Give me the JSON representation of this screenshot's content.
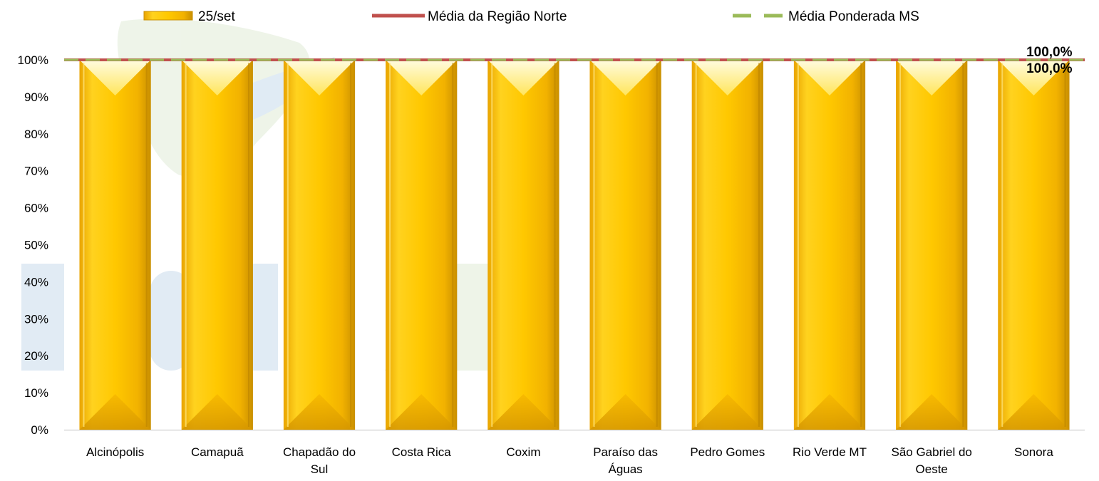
{
  "chart_data": {
    "type": "bar",
    "title": "",
    "xlabel": "",
    "ylabel": "",
    "categories": [
      [
        "Alcinópolis"
      ],
      [
        "Camapuã"
      ],
      [
        "Chapadão do",
        "Sul"
      ],
      [
        "Costa Rica"
      ],
      [
        "Coxim"
      ],
      [
        "Paraíso das",
        "Águas"
      ],
      [
        "Pedro Gomes"
      ],
      [
        "Rio Verde MT"
      ],
      [
        "São Gabriel do",
        "Oeste"
      ],
      [
        "Sonora"
      ]
    ],
    "series": [
      {
        "name": "25/set",
        "kind": "bar",
        "color": "#F5B800",
        "values": [
          100,
          100,
          100,
          100,
          100,
          100,
          100,
          100,
          100,
          100
        ]
      },
      {
        "name": "Média da Região Norte",
        "kind": "line",
        "color": "#C0504D",
        "values": [
          100,
          100,
          100,
          100,
          100,
          100,
          100,
          100,
          100,
          100
        ]
      },
      {
        "name": "Média Ponderada MS",
        "kind": "dashed-line",
        "color": "#9BBB59",
        "values": [
          100,
          100,
          100,
          100,
          100,
          100,
          100,
          100,
          100,
          100
        ]
      }
    ],
    "ylim": [
      0,
      100
    ],
    "yticks": [
      "0%",
      "10%",
      "20%",
      "30%",
      "40%",
      "50%",
      "60%",
      "70%",
      "80%",
      "90%",
      "100%"
    ],
    "annotations": [
      "100,0%",
      "100,0%"
    ],
    "legend": "top",
    "grid": false
  }
}
